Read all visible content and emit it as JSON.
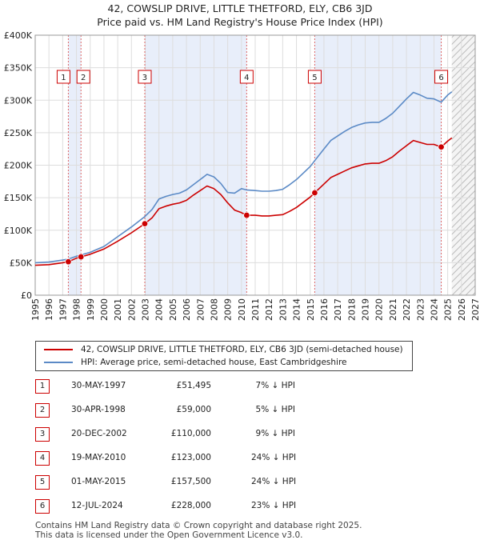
{
  "title_line1": "42, COWSLIP DRIVE, LITTLE THETFORD, ELY, CB6 3JD",
  "title_line2": "Price paid vs. HM Land Registry's House Price Index (HPI)",
  "chart_data": {
    "type": "line",
    "x_range": [
      1995,
      2027
    ],
    "y_range": [
      0,
      400000
    ],
    "y_ticks": [
      {
        "value": 0,
        "label": "£0"
      },
      {
        "value": 50000,
        "label": "£50K"
      },
      {
        "value": 100000,
        "label": "£100K"
      },
      {
        "value": 150000,
        "label": "£150K"
      },
      {
        "value": 200000,
        "label": "£200K"
      },
      {
        "value": 250000,
        "label": "£250K"
      },
      {
        "value": 300000,
        "label": "£300K"
      },
      {
        "value": 350000,
        "label": "£350K"
      },
      {
        "value": 400000,
        "label": "£400K"
      }
    ],
    "x_ticks": [
      1995,
      1996,
      1997,
      1998,
      1999,
      2000,
      2001,
      2002,
      2003,
      2004,
      2005,
      2006,
      2007,
      2008,
      2009,
      2010,
      2011,
      2012,
      2013,
      2014,
      2015,
      2016,
      2017,
      2018,
      2019,
      2020,
      2021,
      2022,
      2023,
      2024,
      2025,
      2026,
      2027
    ],
    "forecast_start": 2025.3,
    "series": [
      {
        "name": "HPI: Average price, semi-detached house, East Cambridgeshire",
        "color": "#5b8ac6",
        "points": [
          [
            1995.0,
            50000
          ],
          [
            1996.0,
            51000
          ],
          [
            1997.0,
            54000
          ],
          [
            1997.41,
            55500
          ],
          [
            1998.0,
            60000
          ],
          [
            1998.33,
            62000
          ],
          [
            1999.0,
            66000
          ],
          [
            2000.0,
            75000
          ],
          [
            2001.0,
            90000
          ],
          [
            2002.0,
            105000
          ],
          [
            2002.97,
            121000
          ],
          [
            2003.5,
            132000
          ],
          [
            2004.0,
            148000
          ],
          [
            2004.5,
            152000
          ],
          [
            2005.0,
            155000
          ],
          [
            2005.5,
            157000
          ],
          [
            2006.0,
            162000
          ],
          [
            2006.5,
            170000
          ],
          [
            2007.0,
            178000
          ],
          [
            2007.5,
            186000
          ],
          [
            2008.0,
            182000
          ],
          [
            2008.5,
            172000
          ],
          [
            2009.0,
            158000
          ],
          [
            2009.5,
            157000
          ],
          [
            2010.0,
            164000
          ],
          [
            2010.38,
            162000
          ],
          [
            2011.0,
            161000
          ],
          [
            2011.5,
            160000
          ],
          [
            2012.0,
            160000
          ],
          [
            2012.5,
            161000
          ],
          [
            2013.0,
            163000
          ],
          [
            2013.5,
            170000
          ],
          [
            2014.0,
            178000
          ],
          [
            2014.5,
            188000
          ],
          [
            2015.0,
            198000
          ],
          [
            2015.33,
            207000
          ],
          [
            2016.0,
            225000
          ],
          [
            2016.5,
            238000
          ],
          [
            2017.0,
            245000
          ],
          [
            2017.5,
            252000
          ],
          [
            2018.0,
            258000
          ],
          [
            2018.5,
            262000
          ],
          [
            2019.0,
            265000
          ],
          [
            2019.5,
            266000
          ],
          [
            2020.0,
            266000
          ],
          [
            2020.5,
            272000
          ],
          [
            2021.0,
            280000
          ],
          [
            2021.5,
            291000
          ],
          [
            2022.0,
            302000
          ],
          [
            2022.5,
            312000
          ],
          [
            2023.0,
            308000
          ],
          [
            2023.5,
            303000
          ],
          [
            2024.0,
            302000
          ],
          [
            2024.53,
            297000
          ],
          [
            2025.0,
            308000
          ],
          [
            2025.3,
            313000
          ]
        ]
      },
      {
        "name": "42, COWSLIP DRIVE, LITTLE THETFORD, ELY, CB6 3JD (semi-detached house)",
        "color": "#cc0000",
        "points": [
          [
            1995.0,
            46000
          ],
          [
            1996.0,
            47000
          ],
          [
            1997.0,
            50000
          ],
          [
            1997.41,
            51495
          ],
          [
            1998.0,
            57000
          ],
          [
            1998.33,
            59000
          ],
          [
            1999.0,
            63000
          ],
          [
            2000.0,
            71000
          ],
          [
            2001.0,
            83000
          ],
          [
            2002.0,
            96000
          ],
          [
            2002.97,
            110000
          ],
          [
            2003.5,
            119000
          ],
          [
            2004.0,
            133000
          ],
          [
            2004.5,
            137000
          ],
          [
            2005.0,
            140000
          ],
          [
            2005.5,
            142000
          ],
          [
            2006.0,
            146000
          ],
          [
            2006.5,
            154000
          ],
          [
            2007.0,
            161000
          ],
          [
            2007.5,
            168000
          ],
          [
            2008.0,
            164000
          ],
          [
            2008.5,
            155000
          ],
          [
            2009.0,
            142000
          ],
          [
            2009.5,
            131000
          ],
          [
            2010.0,
            127000
          ],
          [
            2010.38,
            123000
          ],
          [
            2011.0,
            123000
          ],
          [
            2011.5,
            122000
          ],
          [
            2012.0,
            122000
          ],
          [
            2012.5,
            123000
          ],
          [
            2013.0,
            124000
          ],
          [
            2013.5,
            129000
          ],
          [
            2014.0,
            135000
          ],
          [
            2014.5,
            143000
          ],
          [
            2015.0,
            151000
          ],
          [
            2015.33,
            157500
          ],
          [
            2016.0,
            171000
          ],
          [
            2016.5,
            181000
          ],
          [
            2017.0,
            186000
          ],
          [
            2017.5,
            191000
          ],
          [
            2018.0,
            196000
          ],
          [
            2018.5,
            199000
          ],
          [
            2019.0,
            202000
          ],
          [
            2019.5,
            203000
          ],
          [
            2020.0,
            203000
          ],
          [
            2020.5,
            207000
          ],
          [
            2021.0,
            213000
          ],
          [
            2021.5,
            222000
          ],
          [
            2022.0,
            230000
          ],
          [
            2022.5,
            238000
          ],
          [
            2023.0,
            235000
          ],
          [
            2023.5,
            232000
          ],
          [
            2024.0,
            232000
          ],
          [
            2024.53,
            228000
          ],
          [
            2025.0,
            237000
          ],
          [
            2025.3,
            242000
          ]
        ]
      }
    ],
    "sales": [
      {
        "num": "1",
        "year": 1997.41,
        "price": 51495
      },
      {
        "num": "2",
        "year": 1998.33,
        "price": 59000
      },
      {
        "num": "3",
        "year": 2002.97,
        "price": 110000
      },
      {
        "num": "4",
        "year": 2010.38,
        "price": 123000
      },
      {
        "num": "5",
        "year": 2015.33,
        "price": 157500
      },
      {
        "num": "6",
        "year": 2024.53,
        "price": 228000
      }
    ],
    "shaded_ranges": [
      [
        1997.41,
        1998.33
      ],
      [
        2002.97,
        2010.38
      ],
      [
        2015.33,
        2024.53
      ]
    ]
  },
  "legend": {
    "property_label": "42, COWSLIP DRIVE, LITTLE THETFORD, ELY, CB6 3JD (semi-detached house)",
    "hpi_label": "HPI: Average price, semi-detached house, East Cambridgeshire",
    "property_color": "#cc0000",
    "hpi_color": "#5b8ac6"
  },
  "table": [
    {
      "num": "1",
      "date": "30-MAY-1997",
      "price": "£51,495",
      "hpi": "7% ↓ HPI"
    },
    {
      "num": "2",
      "date": "30-APR-1998",
      "price": "£59,000",
      "hpi": "5% ↓ HPI"
    },
    {
      "num": "3",
      "date": "20-DEC-2002",
      "price": "£110,000",
      "hpi": "9% ↓ HPI"
    },
    {
      "num": "4",
      "date": "19-MAY-2010",
      "price": "£123,000",
      "hpi": "24% ↓ HPI"
    },
    {
      "num": "5",
      "date": "01-MAY-2015",
      "price": "£157,500",
      "hpi": "24% ↓ HPI"
    },
    {
      "num": "6",
      "date": "12-JUL-2024",
      "price": "£228,000",
      "hpi": "23% ↓ HPI"
    }
  ],
  "footer": {
    "line1": "Contains HM Land Registry data © Crown copyright and database right 2025.",
    "line2": "This data is licensed under the Open Government Licence v3.0."
  }
}
